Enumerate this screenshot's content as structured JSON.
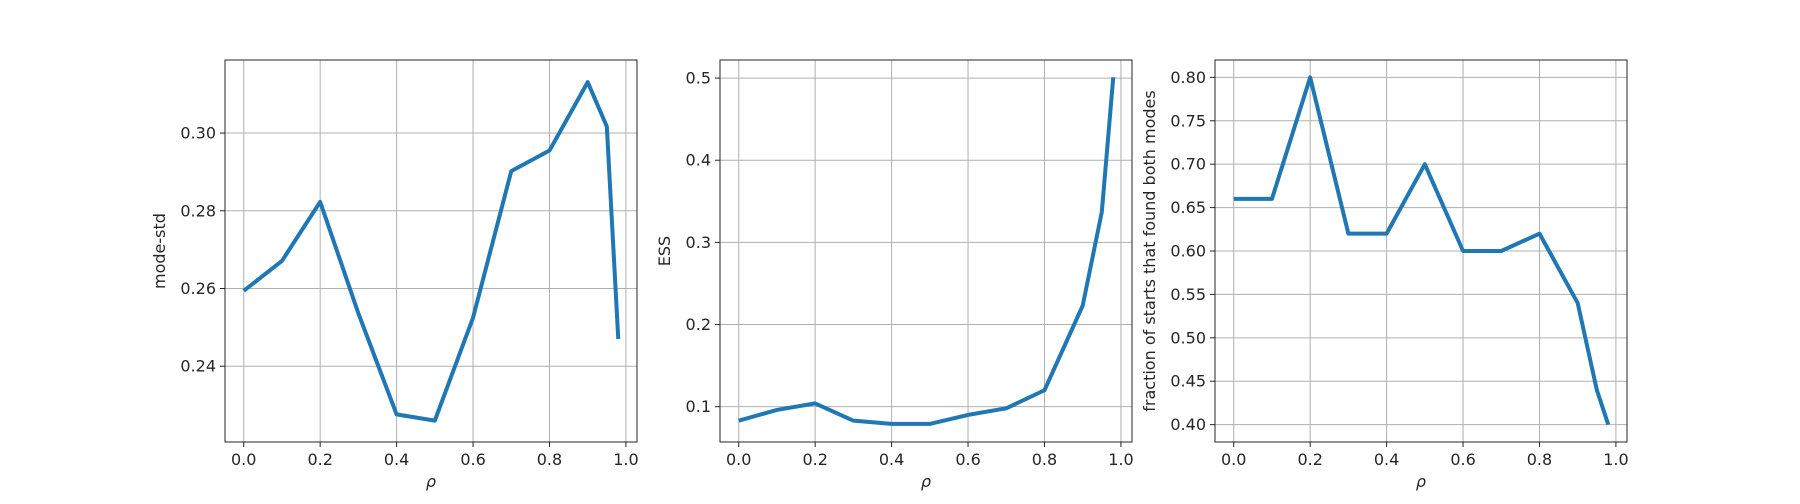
{
  "chart_data": [
    {
      "type": "line",
      "xlabel": "ρ",
      "ylabel": "mode-std",
      "xlim": [
        -0.049,
        1.029
      ],
      "ylim": [
        0.2205,
        0.3188
      ],
      "xticks": [
        "0.0",
        "0.2",
        "0.4",
        "0.6",
        "0.8",
        "1.0"
      ],
      "yticks": [
        "0.24",
        "0.26",
        "0.28",
        "0.30"
      ],
      "grid": true,
      "color": "#1f77b4",
      "x": [
        0.0,
        0.1,
        0.2,
        0.3,
        0.4,
        0.5,
        0.6,
        0.7,
        0.8,
        0.9,
        0.95,
        0.98
      ],
      "y": [
        0.2594,
        0.2671,
        0.2823,
        0.2536,
        0.2276,
        0.226,
        0.2525,
        0.2902,
        0.2955,
        0.3131,
        0.3017,
        0.247
      ]
    },
    {
      "type": "line",
      "xlabel": "ρ",
      "ylabel": "ESS",
      "xlim": [
        -0.049,
        1.029
      ],
      "ylim": [
        0.057,
        0.522
      ],
      "xticks": [
        "0.0",
        "0.2",
        "0.4",
        "0.6",
        "0.8",
        "1.0"
      ],
      "yticks": [
        "0.1",
        "0.2",
        "0.3",
        "0.4",
        "0.5"
      ],
      "grid": true,
      "color": "#1f77b4",
      "x": [
        0.0,
        0.1,
        0.2,
        0.3,
        0.4,
        0.5,
        0.6,
        0.7,
        0.8,
        0.9,
        0.95,
        0.98
      ],
      "y": [
        0.083,
        0.096,
        0.104,
        0.083,
        0.079,
        0.079,
        0.09,
        0.098,
        0.12,
        0.223,
        0.337,
        0.501
      ]
    },
    {
      "type": "line",
      "xlabel": "ρ",
      "ylabel": "fraction of starts that found both modes",
      "xlim": [
        -0.049,
        1.029
      ],
      "ylim": [
        0.38,
        0.82
      ],
      "xticks": [
        "0.0",
        "0.2",
        "0.4",
        "0.6",
        "0.8",
        "1.0"
      ],
      "yticks": [
        "0.40",
        "0.45",
        "0.50",
        "0.55",
        "0.60",
        "0.65",
        "0.70",
        "0.75",
        "0.80"
      ],
      "grid": true,
      "color": "#1f77b4",
      "x": [
        0.0,
        0.1,
        0.2,
        0.3,
        0.4,
        0.5,
        0.6,
        0.7,
        0.8,
        0.9,
        0.95,
        0.98
      ],
      "y": [
        0.66,
        0.66,
        0.8,
        0.62,
        0.62,
        0.7,
        0.6,
        0.6,
        0.62,
        0.54,
        0.44,
        0.4
      ]
    }
  ]
}
